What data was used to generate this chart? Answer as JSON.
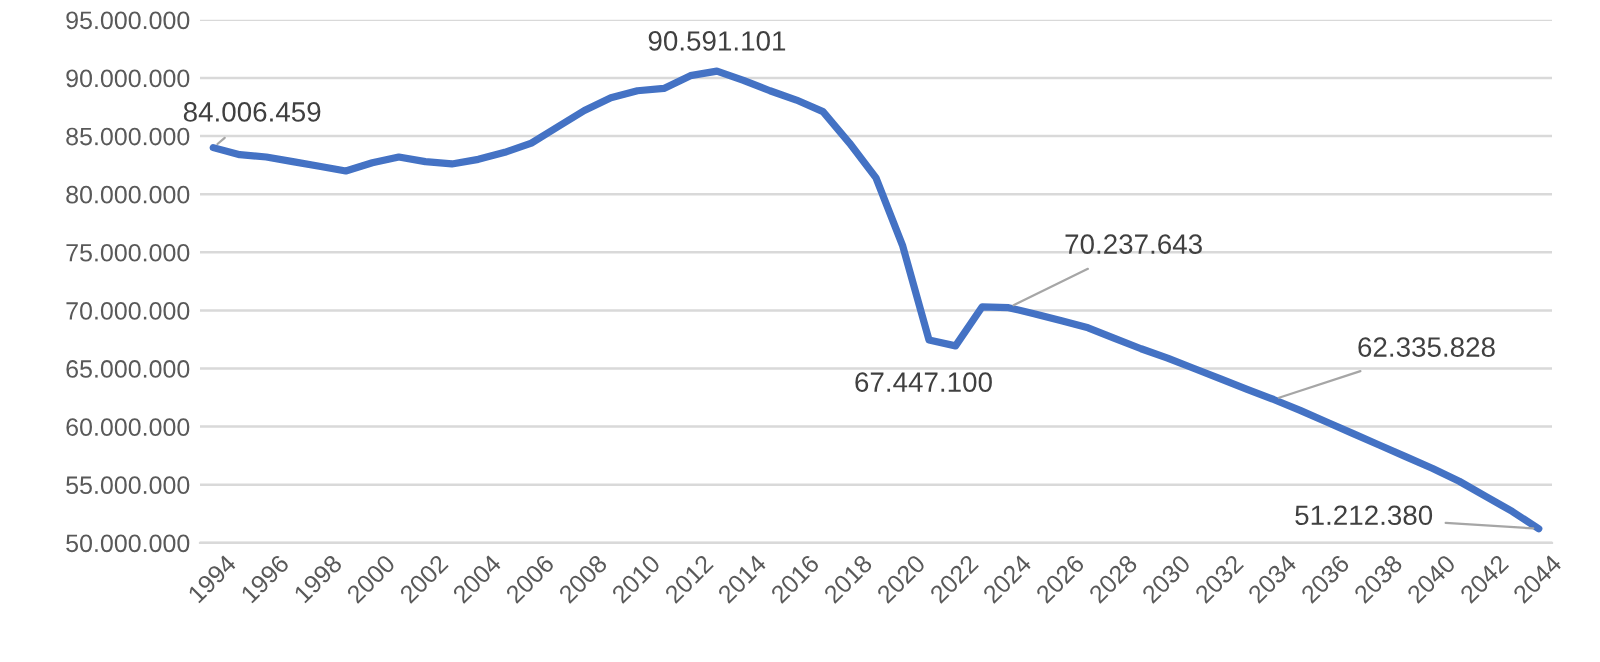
{
  "chart_data": {
    "type": "line",
    "x": [
      1994,
      1995,
      1996,
      1997,
      1998,
      1999,
      2000,
      2001,
      2002,
      2003,
      2004,
      2005,
      2006,
      2007,
      2008,
      2009,
      2010,
      2011,
      2012,
      2013,
      2014,
      2015,
      2016,
      2017,
      2018,
      2019,
      2020,
      2021,
      2022,
      2023,
      2024,
      2025,
      2026,
      2027,
      2028,
      2029,
      2030,
      2031,
      2032,
      2033,
      2034,
      2035,
      2036,
      2037,
      2038,
      2039,
      2040,
      2041,
      2042,
      2043,
      2044
    ],
    "series": [
      {
        "color": "#4472c4",
        "values": [
          84006459,
          83400000,
          83200000,
          82800000,
          82400000,
          82000000,
          82700000,
          83200000,
          82800000,
          82600000,
          83000000,
          83600000,
          84400000,
          85800000,
          87200000,
          88300000,
          88900000,
          89100000,
          90200000,
          90591101,
          89800000,
          88900000,
          88100000,
          87100000,
          84400000,
          81400000,
          75600000,
          67447100,
          66950000,
          70300000,
          70237643,
          69700000,
          69100000,
          68500000,
          67600000,
          66700000,
          65900000,
          65000000,
          64100000,
          63200000,
          62335828,
          61400000,
          60400000,
          59400000,
          58400000,
          57400000,
          56400000,
          55300000,
          54000000,
          52700000,
          51212380
        ]
      }
    ],
    "annotations": [
      {
        "text": "84.006.459",
        "x": 1994,
        "y": 84006459
      },
      {
        "text": "90.591.101",
        "x": 2013,
        "y": 90591101
      },
      {
        "text": "67.447.100",
        "x": 2021,
        "y": 67447100
      },
      {
        "text": "70.237.643",
        "x": 2024,
        "y": 70237643
      },
      {
        "text": "62.335.828",
        "x": 2034,
        "y": 62335828
      },
      {
        "text": "51.212.380",
        "x": 2044,
        "y": 51212380
      }
    ],
    "xlim": [
      1993.5,
      2044.5
    ],
    "xticks": [
      1994,
      1996,
      1998,
      2000,
      2002,
      2004,
      2006,
      2008,
      2010,
      2012,
      2014,
      2016,
      2018,
      2020,
      2022,
      2024,
      2026,
      2028,
      2030,
      2032,
      2034,
      2036,
      2038,
      2040,
      2042,
      2044
    ],
    "ylim": [
      50000000,
      95000000
    ],
    "yticks": [
      {
        "value": 50000000,
        "label": "50.000.000"
      },
      {
        "value": 55000000,
        "label": "55.000.000"
      },
      {
        "value": 60000000,
        "label": "60.000.000"
      },
      {
        "value": 65000000,
        "label": "65.000.000"
      },
      {
        "value": 70000000,
        "label": "70.000.000"
      },
      {
        "value": 75000000,
        "label": "75.000.000"
      },
      {
        "value": 80000000,
        "label": "80.000.000"
      },
      {
        "value": 85000000,
        "label": "85.000.000"
      },
      {
        "value": 90000000,
        "label": "90.000.000"
      },
      {
        "value": 95000000,
        "label": "95.000.000"
      }
    ],
    "grid": "y",
    "marker": "none",
    "line_style": "solid"
  }
}
